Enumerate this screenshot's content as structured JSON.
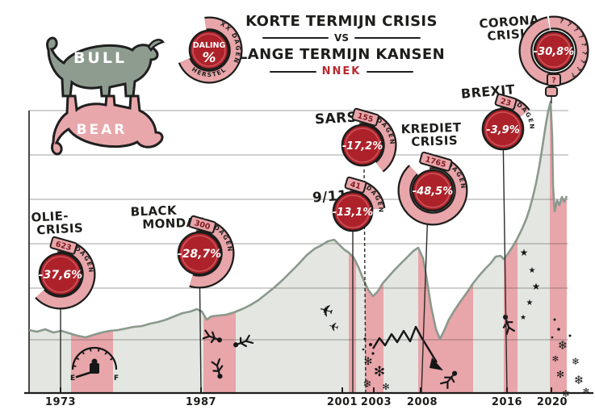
{
  "title": {
    "line1": "KORTE TERMIJN CRISIS",
    "separator": "VS",
    "line2": "LANGE TERMIJN KANSEN",
    "brand": "NNEK"
  },
  "legend_badge": {
    "top_label": "DALING",
    "symbol": "%",
    "days_label": "XX DAGEN",
    "bottom_label": "HERSTEL"
  },
  "bull_bear": {
    "bull_label": "BULL",
    "bear_label": "BEAR"
  },
  "colors": {
    "badge_red": "#ad222a",
    "badge_pink": "#e8a6aa",
    "band_pink": "#e8a0a5",
    "line_green": "#8a998c",
    "area_gray": "#e4e6e1",
    "ink": "#1d1d1b",
    "brand_red": "#b62a30"
  },
  "chart_data": {
    "type": "line",
    "title": "Korte termijn crisis vs lange termijn kansen",
    "xlabel": "",
    "ylabel": "",
    "grid": true,
    "x_ticks": [
      "1973",
      "1987",
      "2001",
      "2003",
      "2008",
      "2016",
      "2020"
    ],
    "crises": [
      {
        "name": "Olie-crisis",
        "label_line1": "OLIE-",
        "label_line2": "CRISIS",
        "decline": "-37,6%",
        "decline_pct": -37.6,
        "recovery_days": 623,
        "days": "623",
        "days_unit": "DAGEN",
        "year": "1973"
      },
      {
        "name": "Black Monday",
        "label_line1": "BLACK",
        "label_line2": "MONDAY",
        "decline": "-28,7%",
        "decline_pct": -28.7,
        "recovery_days": 300,
        "days": "300",
        "days_unit": "DAGEN",
        "year": "1987"
      },
      {
        "name": "9/11",
        "label_line1": "9/11",
        "label_line2": "",
        "decline": "-13,1%",
        "decline_pct": -13.1,
        "recovery_days": 41,
        "days": "41",
        "days_unit": "DAGEN",
        "year": "2001"
      },
      {
        "name": "SARS",
        "label_line1": "SARS",
        "label_line2": "",
        "decline": "-17,2%",
        "decline_pct": -17.2,
        "recovery_days": 155,
        "days": "155",
        "days_unit": "DAGEN",
        "year": "2003"
      },
      {
        "name": "Kredietcrisis",
        "label_line1": "KREDIET",
        "label_line2": "CRISIS",
        "decline": "-48,5%",
        "decline_pct": -48.5,
        "recovery_days": 1765,
        "days": "1765",
        "days_unit": "DAGEN",
        "year": "2008"
      },
      {
        "name": "Brexit",
        "label_line1": "BREXIT",
        "label_line2": "",
        "decline": "-3,9%",
        "decline_pct": -3.9,
        "recovery_days": 23,
        "days": "23",
        "days_unit": "DAGEN",
        "year": "2016"
      },
      {
        "name": "Coronacrisis",
        "label_line1": "CORONA",
        "label_line2": "CRISIS",
        "decline": "-30,8%",
        "decline_pct": -30.8,
        "recovery_days": null,
        "days": "?",
        "days_unit": "?",
        "year": "2020"
      }
    ],
    "index_line_points": [
      [
        1970,
        100
      ],
      [
        1973,
        104
      ],
      [
        1974,
        86
      ],
      [
        1978,
        95
      ],
      [
        1982,
        112
      ],
      [
        1987,
        152
      ],
      [
        1988,
        130
      ],
      [
        1991,
        162
      ],
      [
        1995,
        212
      ],
      [
        1998,
        300
      ],
      [
        2000,
        385
      ],
      [
        2001,
        330
      ],
      [
        2003,
        255
      ],
      [
        2005,
        312
      ],
      [
        2007,
        382
      ],
      [
        2009,
        205
      ],
      [
        2011,
        282
      ],
      [
        2013,
        332
      ],
      [
        2015,
        402
      ],
      [
        2016,
        388
      ],
      [
        2017,
        452
      ],
      [
        2018,
        522
      ],
      [
        2019,
        605
      ],
      [
        2020,
        765
      ],
      [
        2020.3,
        525
      ]
    ]
  }
}
